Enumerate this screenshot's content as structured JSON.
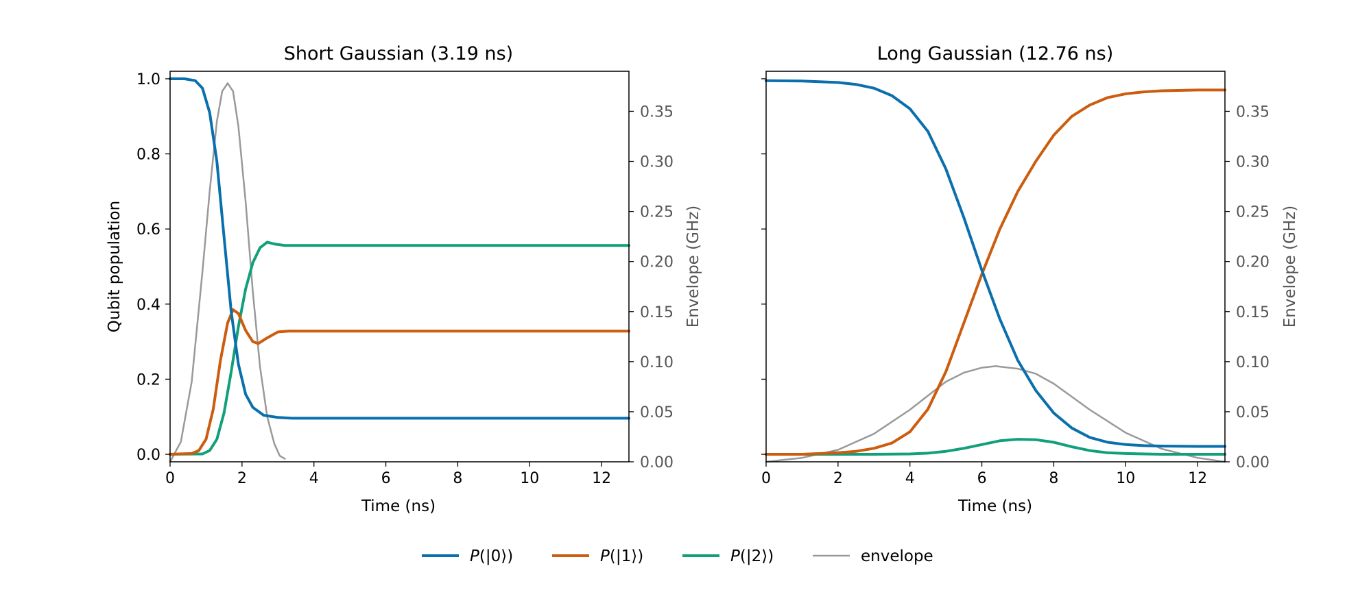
{
  "chart_data": {
    "type": "line",
    "colors": {
      "p0": "#0a6fad",
      "p1": "#cc5c0e",
      "p2": "#11a07a",
      "envelope": "#999999",
      "right_axis_text": "#555555"
    },
    "legend": {
      "placement": "bottom-center",
      "items": [
        {
          "key": "p0",
          "label": "P(|0⟩)"
        },
        {
          "key": "p1",
          "label": "P(|1⟩)"
        },
        {
          "key": "p2",
          "label": "P(|2⟩)"
        },
        {
          "key": "envelope",
          "label": "envelope"
        }
      ]
    },
    "panels": [
      {
        "title": "Short Gaussian (3.19 ns)",
        "xlabel": "Time (ns)",
        "ylabel": "Qubit population",
        "y2label": "Envelope (GHz)",
        "xlim": [
          0,
          12.76
        ],
        "ylim": [
          -0.02,
          1.02
        ],
        "y2lim": [
          0,
          0.39
        ],
        "xticks": [
          "0",
          "2",
          "4",
          "6",
          "8",
          "10",
          "12"
        ],
        "yticks": [
          "0.0",
          "0.2",
          "0.4",
          "0.6",
          "0.8",
          "1.0"
        ],
        "y2ticks": [
          "0.00",
          "0.05",
          "0.10",
          "0.15",
          "0.20",
          "0.25",
          "0.30",
          "0.35"
        ],
        "show_left_tick_labels": true,
        "series": {
          "p0": {
            "x": [
              0,
              0.4,
              0.7,
              0.9,
              1.1,
              1.3,
              1.5,
              1.7,
              1.9,
              2.1,
              2.3,
              2.6,
              3.0,
              3.4,
              4.0,
              6.0,
              8.0,
              10.0,
              12.76
            ],
            "y": [
              1.0,
              1.0,
              0.995,
              0.975,
              0.91,
              0.78,
              0.58,
              0.38,
              0.24,
              0.16,
              0.125,
              0.104,
              0.098,
              0.096,
              0.096,
              0.096,
              0.096,
              0.096,
              0.096
            ]
          },
          "p1": {
            "x": [
              0,
              0.6,
              0.8,
              1.0,
              1.2,
              1.4,
              1.6,
              1.75,
              1.9,
              2.1,
              2.3,
              2.45,
              2.7,
              3.0,
              3.3,
              4.0,
              6.0,
              8.0,
              10.0,
              12.76
            ],
            "y": [
              0.0,
              0.002,
              0.01,
              0.04,
              0.12,
              0.25,
              0.35,
              0.385,
              0.375,
              0.33,
              0.3,
              0.295,
              0.31,
              0.326,
              0.328,
              0.328,
              0.328,
              0.328,
              0.328,
              0.328
            ]
          },
          "p2": {
            "x": [
              0,
              0.9,
              1.1,
              1.3,
              1.5,
              1.7,
              1.9,
              2.1,
              2.3,
              2.5,
              2.7,
              2.9,
              3.2,
              3.6,
              4.0,
              6.0,
              8.0,
              10.0,
              12.76
            ],
            "y": [
              0.0,
              0.001,
              0.01,
              0.04,
              0.11,
              0.22,
              0.34,
              0.44,
              0.51,
              0.55,
              0.565,
              0.56,
              0.556,
              0.556,
              0.556,
              0.556,
              0.556,
              0.556,
              0.556
            ]
          },
          "envelope": {
            "x": [
              0,
              0.3,
              0.6,
              0.9,
              1.1,
              1.3,
              1.45,
              1.6,
              1.75,
              1.9,
              2.1,
              2.3,
              2.5,
              2.7,
              2.9,
              3.05,
              3.19
            ],
            "y": [
              0.0,
              0.02,
              0.08,
              0.19,
              0.27,
              0.34,
              0.37,
              0.378,
              0.37,
              0.335,
              0.26,
              0.17,
              0.095,
              0.045,
              0.018,
              0.006,
              0.003
            ]
          }
        }
      },
      {
        "title": "Long Gaussian (12.76 ns)",
        "xlabel": "Time (ns)",
        "ylabel": "",
        "y2label": "Envelope (GHz)",
        "xlim": [
          0,
          12.76
        ],
        "ylim": [
          -0.02,
          1.02
        ],
        "y2lim": [
          0,
          0.39
        ],
        "xticks": [
          "0",
          "2",
          "4",
          "6",
          "8",
          "10",
          "12"
        ],
        "yticks": [
          "",
          "",
          "",
          "",
          "",
          ""
        ],
        "y2ticks": [
          "0.00",
          "0.05",
          "0.10",
          "0.15",
          "0.20",
          "0.25",
          "0.30",
          "0.35"
        ],
        "show_left_tick_labels": false,
        "series": {
          "p0": {
            "x": [
              0,
              1,
              2,
              2.5,
              3,
              3.5,
              4,
              4.5,
              5,
              5.5,
              6,
              6.5,
              7,
              7.5,
              8,
              8.5,
              9,
              9.5,
              10,
              10.5,
              11,
              12,
              12.76
            ],
            "y": [
              0.995,
              0.994,
              0.99,
              0.985,
              0.975,
              0.955,
              0.92,
              0.86,
              0.76,
              0.63,
              0.49,
              0.36,
              0.25,
              0.17,
              0.11,
              0.07,
              0.045,
              0.032,
              0.026,
              0.023,
              0.022,
              0.021,
              0.021
            ]
          },
          "p1": {
            "x": [
              0,
              1,
              2,
              2.5,
              3,
              3.5,
              4,
              4.5,
              5,
              5.5,
              6,
              6.5,
              7,
              7.5,
              8,
              8.5,
              9,
              9.5,
              10,
              10.5,
              11,
              12,
              12.76
            ],
            "y": [
              0.0,
              0.0,
              0.004,
              0.008,
              0.016,
              0.03,
              0.06,
              0.12,
              0.22,
              0.35,
              0.48,
              0.6,
              0.7,
              0.78,
              0.85,
              0.9,
              0.93,
              0.95,
              0.96,
              0.965,
              0.968,
              0.97,
              0.97
            ]
          },
          "p2": {
            "x": [
              0,
              3,
              4,
              4.5,
              5,
              5.5,
              6,
              6.5,
              7,
              7.5,
              8,
              8.5,
              9,
              9.5,
              10,
              11,
              12,
              12.76
            ],
            "y": [
              0.0,
              0.0,
              0.001,
              0.003,
              0.008,
              0.016,
              0.026,
              0.036,
              0.04,
              0.039,
              0.032,
              0.02,
              0.01,
              0.004,
              0.002,
              0.0,
              0.0,
              0.0
            ]
          },
          "envelope": {
            "x": [
              0,
              1,
              2,
              3,
              4,
              4.5,
              5,
              5.5,
              6,
              6.38,
              7,
              7.5,
              8,
              8.5,
              9,
              10,
              11,
              12,
              12.76
            ],
            "y": [
              0.0,
              0.004,
              0.012,
              0.028,
              0.052,
              0.066,
              0.08,
              0.089,
              0.094,
              0.0955,
              0.093,
              0.088,
              0.078,
              0.065,
              0.052,
              0.029,
              0.013,
              0.004,
              0.0
            ]
          }
        }
      }
    ]
  }
}
